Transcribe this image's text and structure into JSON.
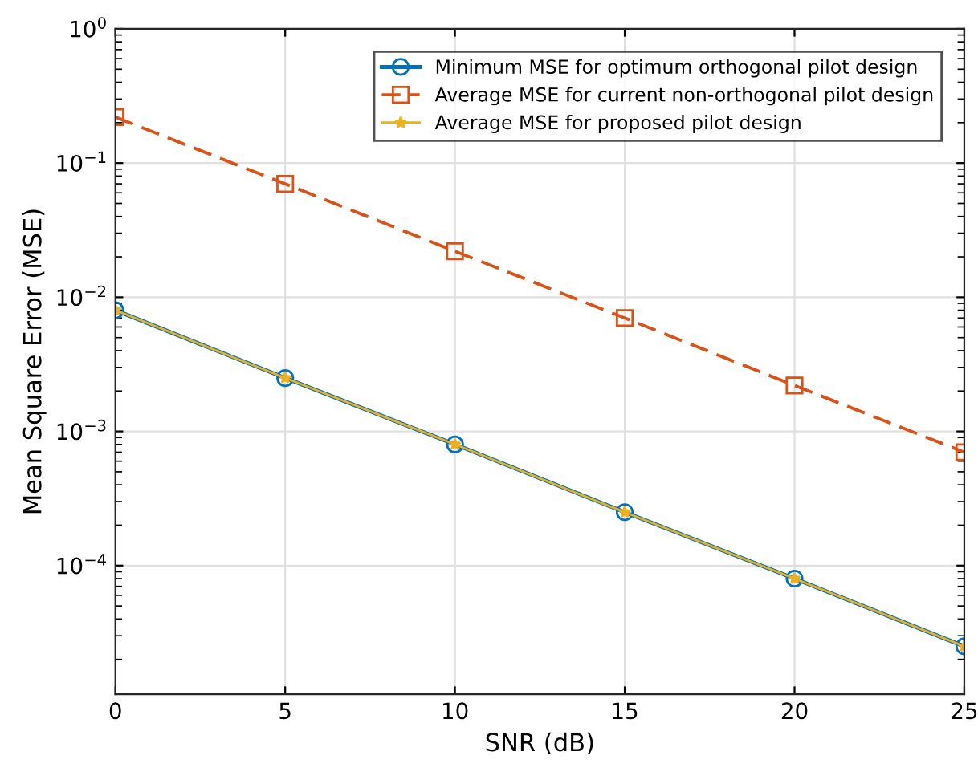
{
  "chart_data": {
    "type": "line",
    "xlabel": "SNR (dB)",
    "ylabel": "Mean Square Error (MSE)",
    "x": [
      0,
      5,
      10,
      15,
      20,
      25
    ],
    "series": [
      {
        "name": "Minimum MSE for optimum orthogonal pilot design",
        "color": "#0072bd",
        "marker": "circle",
        "line_style": "solid",
        "values": [
          0.008,
          0.0025,
          0.0008,
          0.00025,
          8e-05,
          2.5e-05
        ]
      },
      {
        "name": "Average MSE for current non-orthogonal pilot design",
        "color": "#d95319",
        "marker": "square",
        "line_style": "dashed",
        "values": [
          0.22,
          0.07,
          0.022,
          0.007,
          0.0022,
          0.0007
        ]
      },
      {
        "name": "Average MSE for proposed pilot design",
        "color": "#edb120",
        "marker": "star",
        "line_style": "solid",
        "values": [
          0.008,
          0.0025,
          0.0008,
          0.00025,
          8e-05,
          2.5e-05
        ]
      }
    ],
    "log": "y",
    "xlim": [
      0,
      25
    ],
    "ylim": [
      1.1e-05,
      1
    ],
    "xticks": [
      0,
      5,
      10,
      15,
      20,
      25
    ],
    "yticks": [
      {
        "value": 0.0001,
        "label": "10$^{−4}$"
      },
      {
        "value": 0.001,
        "label": "10$^{−3}$"
      },
      {
        "value": 0.01,
        "label": "10$^{−2}$"
      },
      {
        "value": 0.1,
        "label": "10$^{−1}$"
      },
      {
        "value": 1,
        "label": "10$^{0}$"
      }
    ],
    "grid": true,
    "legend": "top right"
  }
}
